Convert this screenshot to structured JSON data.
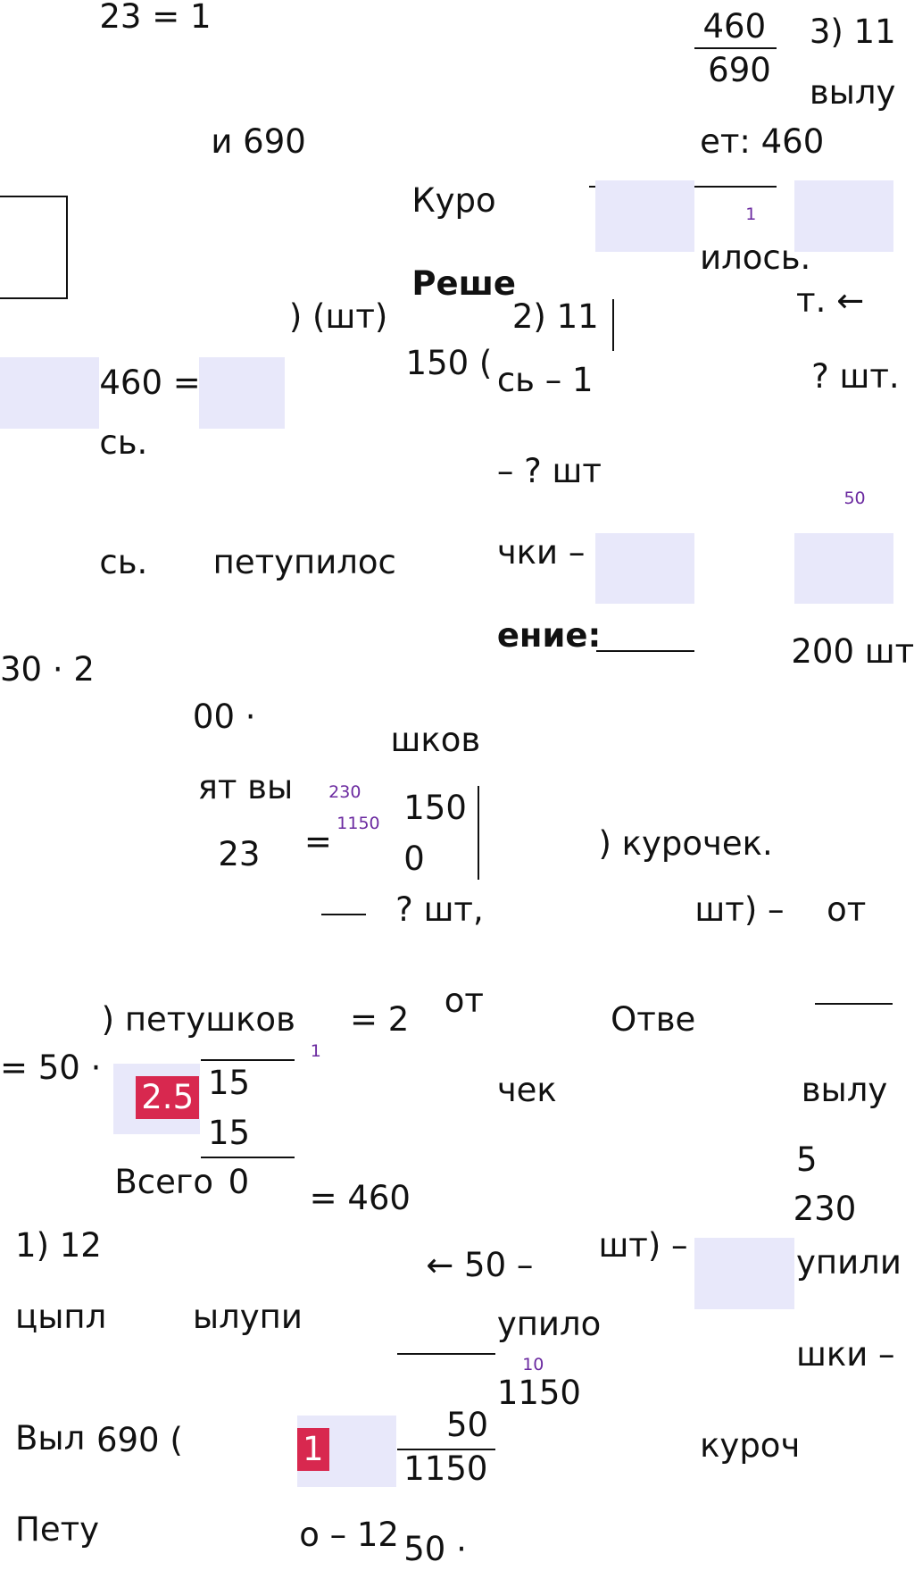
{
  "fragments": [
    "23 = 1",
    "460",
    "690",
    "3) 11",
    "вылу",
    "и 690",
    "ет: 460",
    "Куро",
    "Реше",
    "илось.",
    "т. ←",
    ") (шт)",
    "2) 11",
    "150 (",
    "сь – 1",
    "460 =",
    "? шт.",
    "сь.",
    "– ? шт",
    "сь.",
    "петупилос",
    "чки –",
    "ение:",
    "200 шт",
    "30 · 2",
    "00 ·",
    "шков",
    "ят вы",
    "150",
    "23",
    "=",
    "0",
    ") курочек.",
    "? шт,",
    "шт) –",
    "от",
    ") петушков",
    "= 2",
    "от",
    "Отве",
    "= 50 ·",
    "15",
    "чек",
    "вылу",
    "15",
    "5",
    "Всего",
    "0",
    "= 460",
    "230",
    "1) 12",
    "← 50 –",
    "шт) –",
    "упили",
    "цыпл",
    "ылупи",
    "упило",
    "шки –",
    "1150",
    "Выл",
    "690 (",
    "50",
    "1150",
    "куроч",
    "Пету",
    "о – 12",
    "50 ·"
  ],
  "small_notes": [
    "230",
    "50",
    "1150",
    "1",
    "1",
    "10"
  ],
  "badges": [
    "2.5",
    "1"
  ]
}
